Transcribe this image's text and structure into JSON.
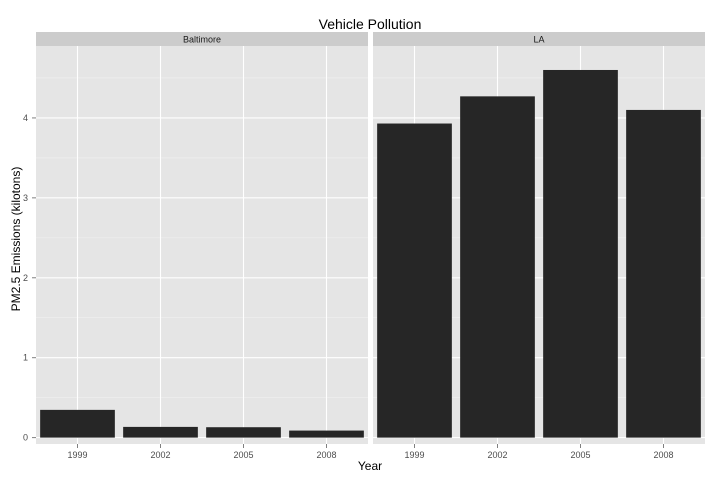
{
  "chart_data": {
    "type": "bar",
    "title": "Vehicle Pollution",
    "xlabel": "Year",
    "ylabel": "PM2.5 Emissions (kilotons)",
    "categories": [
      "1999",
      "2002",
      "2005",
      "2008"
    ],
    "ylim": [
      -0.08,
      4.9
    ],
    "yticks": [
      0,
      1,
      2,
      3,
      4
    ],
    "grid": true,
    "bar_color": "#262626",
    "panel_color": "#e5e5e5",
    "strip_color": "#cccccc",
    "facets": [
      {
        "name": "Baltimore",
        "values": [
          0.347,
          0.134,
          0.13,
          0.088
        ]
      },
      {
        "name": "LA",
        "values": [
          3.93,
          4.27,
          4.6,
          4.1
        ]
      }
    ]
  }
}
